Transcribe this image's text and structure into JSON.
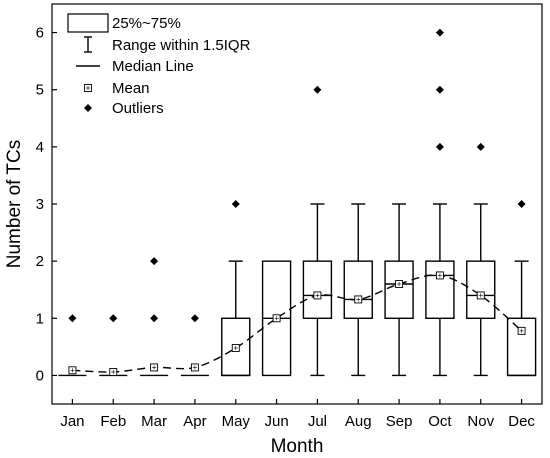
{
  "chart_data": {
    "type": "box",
    "xlabel": "Month",
    "ylabel": "Number of TCs",
    "ylim": [
      -0.5,
      6.5
    ],
    "yticks": [
      0,
      1,
      2,
      3,
      4,
      5,
      6
    ],
    "categories": [
      "Jan",
      "Feb",
      "Mar",
      "Apr",
      "May",
      "Jun",
      "Jul",
      "Aug",
      "Sep",
      "Oct",
      "Nov",
      "Dec"
    ],
    "boxes": [
      {
        "q1": 0,
        "median": 0,
        "q3": 0,
        "whisker_low": 0,
        "whisker_high": 0,
        "mean": 0.09,
        "outliers": [
          1
        ]
      },
      {
        "q1": 0,
        "median": 0,
        "q3": 0,
        "whisker_low": 0,
        "whisker_high": 0,
        "mean": 0.06,
        "outliers": [
          1
        ]
      },
      {
        "q1": 0,
        "median": 0,
        "q3": 0,
        "whisker_low": 0,
        "whisker_high": 0,
        "mean": 0.14,
        "outliers": [
          1,
          2
        ]
      },
      {
        "q1": 0,
        "median": 0,
        "q3": 0,
        "whisker_low": 0,
        "whisker_high": 0,
        "mean": 0.14,
        "outliers": [
          1
        ]
      },
      {
        "q1": 0,
        "median": 0,
        "q3": 1,
        "whisker_low": 0,
        "whisker_high": 2,
        "mean": 0.48,
        "outliers": [
          3
        ]
      },
      {
        "q1": 0,
        "median": 1,
        "q3": 2,
        "whisker_low": 0,
        "whisker_high": 2,
        "mean": 1.0,
        "outliers": []
      },
      {
        "q1": 1,
        "median": 1.4,
        "q3": 2,
        "whisker_low": 0,
        "whisker_high": 3,
        "mean": 1.4,
        "outliers": [
          5
        ]
      },
      {
        "q1": 1,
        "median": 1.33,
        "q3": 2,
        "whisker_low": 0,
        "whisker_high": 3,
        "mean": 1.33,
        "outliers": []
      },
      {
        "q1": 1,
        "median": 1.6,
        "q3": 2,
        "whisker_low": 0,
        "whisker_high": 3,
        "mean": 1.6,
        "outliers": []
      },
      {
        "q1": 1,
        "median": 1.75,
        "q3": 2,
        "whisker_low": 0,
        "whisker_high": 3,
        "mean": 1.75,
        "outliers": [
          4,
          5,
          6
        ]
      },
      {
        "q1": 1,
        "median": 1.4,
        "q3": 2,
        "whisker_low": 0,
        "whisker_high": 3,
        "mean": 1.4,
        "outliers": [
          4
        ]
      },
      {
        "q1": 0,
        "median": 0,
        "q3": 1,
        "whisker_low": 0,
        "whisker_high": 2,
        "mean": 0.78,
        "outliers": [
          3
        ]
      }
    ],
    "mean_trend_line": "dashed",
    "legend": {
      "position": "top-left",
      "entries": [
        "25%~75%",
        "Range within 1.5IQR",
        "Median Line",
        "Mean",
        "Outliers"
      ]
    }
  }
}
